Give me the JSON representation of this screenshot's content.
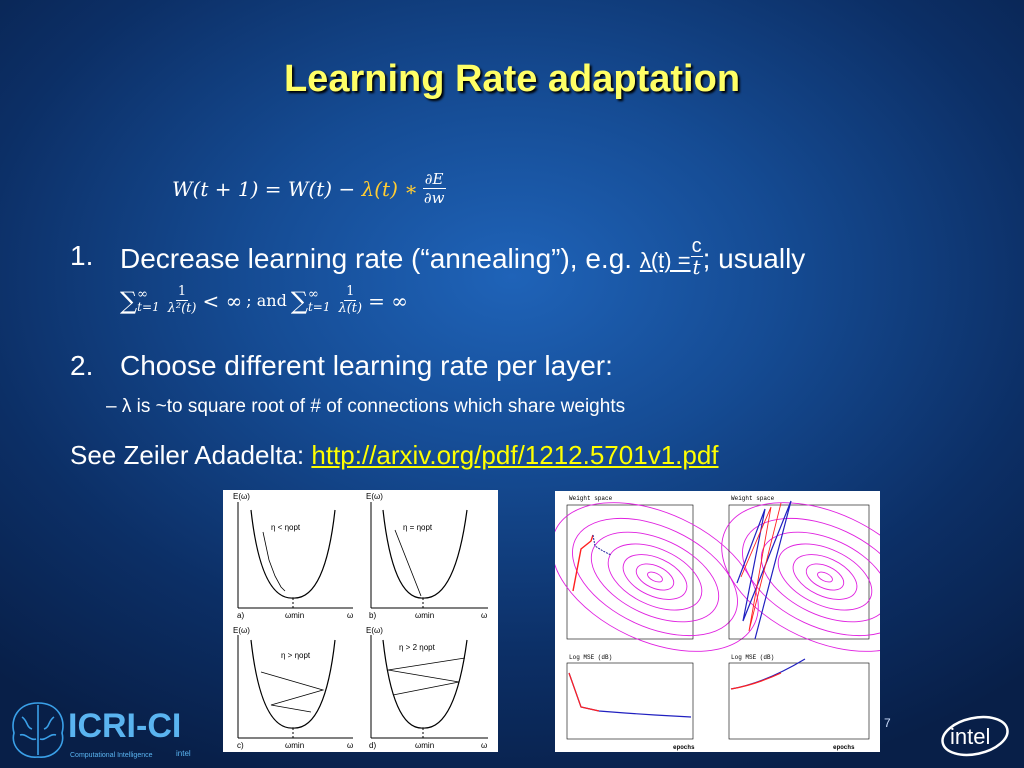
{
  "slide": {
    "title": "Learning Rate adaptation",
    "page_number": "7"
  },
  "formula": {
    "lhs": "W(t + 1) =",
    "w_t": "W(t)",
    "minus": "−",
    "lambda_t": "λ(t)",
    "star": "∗",
    "deriv_num": "∂E",
    "deriv_den": "∂w"
  },
  "list": {
    "item1_num": "1.",
    "item1_text": "Decrease learning rate (“annealing”), e.g.",
    "item1_lambda": "λ(t) =",
    "item1_c": "c",
    "item1_t": "t",
    "item1_tail": "; usually",
    "sum1_sigma": "∑",
    "sum1_sup": "∞",
    "sum1_sub": "t=1",
    "sum1_num": "1",
    "sum1_den": "λ²(t)",
    "sum1_rel": "< ∞",
    "and_text": "; and",
    "sum2_sigma": "∑",
    "sum2_sup": "∞",
    "sum2_sub": "t=1",
    "sum2_num": "1",
    "sum2_den": "λ(t)",
    "sum2_rel": "= ∞",
    "item2_num": "2.",
    "item2_text": "Choose different learning rate per layer:",
    "bullet": "–  λ is ~to square root of # of connections which share weights"
  },
  "see": {
    "text": "See Zeiler Adadelta:",
    "link": "http://arxiv.org/pdf/1212.5701v1.pdf"
  },
  "left_figure": {
    "panels": [
      {
        "ylabel": "E(ω)",
        "eq": "η < ηopt",
        "tag": "a)",
        "xmark": "ωmin",
        "xlabel": "ω"
      },
      {
        "ylabel": "E(ω)",
        "eq": "η = ηopt",
        "tag": "b)",
        "xmark": "ωmin",
        "xlabel": "ω"
      },
      {
        "ylabel": "E(ω)",
        "eq": "η > ηopt",
        "tag": "c)",
        "xmark": "ωmin",
        "xlabel": "ω"
      },
      {
        "ylabel": "E(ω)",
        "eq": "η > 2 ηopt",
        "tag": "d)",
        "xmark": "ωmin",
        "xlabel": "ω"
      }
    ]
  },
  "right_figure": {
    "top_title_left": "Weight space",
    "top_title_right": "Weight space",
    "bottom_title_left": "Log MSE (dB)",
    "bottom_title_right": "Log MSE (dB)",
    "xlabel_left": "epochs",
    "xlabel_right": "epochs"
  },
  "logo": {
    "name": "ICRI-CI",
    "subtitle": "Computational Intelligence",
    "intel_small": "intel"
  },
  "intel_logo": "intel"
}
